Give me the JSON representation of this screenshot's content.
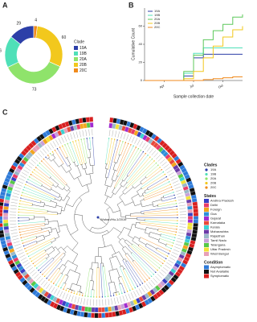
{
  "panels": {
    "a": "A",
    "b": "B",
    "c": "C"
  },
  "chart_data": [
    {
      "type": "donut",
      "legend_title": "Clade",
      "categories": [
        "19A",
        "19B",
        "20A",
        "20B",
        "20C"
      ],
      "values": [
        29,
        36,
        73,
        60,
        4
      ],
      "colors": [
        "#2c3fa8",
        "#4fe0b8",
        "#8fe36b",
        "#f2c81d",
        "#f08a1c"
      ]
    },
    {
      "type": "line",
      "xlabel": "Sample collection date",
      "ylabel": "Cumulative Count",
      "x": [
        0,
        1,
        2,
        3,
        4,
        5,
        6,
        7,
        8,
        9,
        10
      ],
      "xlim": [
        0,
        10
      ],
      "xticks": [
        {
          "value": 2,
          "label": "Apr"
        },
        {
          "value": 5,
          "label": "Jul"
        },
        {
          "value": 8,
          "label": "Oct"
        }
      ],
      "ylim": [
        0,
        80
      ],
      "yticks": [
        0,
        20,
        40,
        60
      ],
      "series": [
        {
          "name": "19A",
          "color": "#2c3fa8",
          "values": [
            0,
            0,
            0,
            0,
            5,
            25,
            29,
            29,
            29,
            29,
            29
          ]
        },
        {
          "name": "19B",
          "color": "#4fe0b8",
          "values": [
            0,
            0,
            0,
            0,
            8,
            30,
            36,
            36,
            36,
            36,
            36
          ]
        },
        {
          "name": "20A",
          "color": "#5cc85a",
          "values": [
            0,
            0,
            0,
            0,
            10,
            28,
            45,
            55,
            62,
            70,
            73
          ]
        },
        {
          "name": "20B",
          "color": "#f2c81d",
          "values": [
            0,
            0,
            0,
            0,
            2,
            10,
            25,
            38,
            48,
            56,
            60
          ]
        },
        {
          "name": "20C",
          "color": "#f08a1c",
          "values": [
            0,
            0,
            0,
            0,
            0,
            0,
            1,
            2,
            3,
            4,
            4
          ]
        }
      ]
    }
  ],
  "tree": {
    "root_label": "Wuhan/Hu-1/2019",
    "legends": [
      {
        "title": "Clades",
        "items": [
          {
            "label": "19A",
            "color": "#2c3fa8"
          },
          {
            "label": "19B",
            "color": "#4fe0b8"
          },
          {
            "label": "20A",
            "color": "#8fe36b"
          },
          {
            "label": "20B",
            "color": "#f2c81d"
          },
          {
            "label": "20C",
            "color": "#f08a1c"
          }
        ]
      },
      {
        "title": "States",
        "items": [
          {
            "label": "Andhra Pradesh",
            "color": "#3a3fc4"
          },
          {
            "label": "Delhi",
            "color": "#e83c6a"
          },
          {
            "label": "Foreign",
            "color": "#f2a51d"
          },
          {
            "label": "Goa",
            "color": "#2e8fd8"
          },
          {
            "label": "Gujarat",
            "color": "#a12bd0"
          },
          {
            "label": "Karnataka",
            "color": "#e84a3c"
          },
          {
            "label": "Kerala",
            "color": "#3bd2d2"
          },
          {
            "label": "Maharashtra",
            "color": "#6a3ca8"
          },
          {
            "label": "Rajasthan",
            "color": "#9ab8c8"
          },
          {
            "label": "Tamil Nadu",
            "color": "#c8a0d8"
          },
          {
            "label": "Telangana",
            "color": "#58c848"
          },
          {
            "label": "Uttar Pradesh",
            "color": "#f2e23a"
          },
          {
            "label": "West Bengal",
            "color": "#e8a0b8"
          }
        ]
      },
      {
        "title": "Condition",
        "items": [
          {
            "label": "Asymptomatic",
            "color": "#2e7ad8"
          },
          {
            "label": "Not Available",
            "color": "#111111"
          },
          {
            "label": "Symptomatic",
            "color": "#d82020"
          }
        ]
      }
    ]
  }
}
